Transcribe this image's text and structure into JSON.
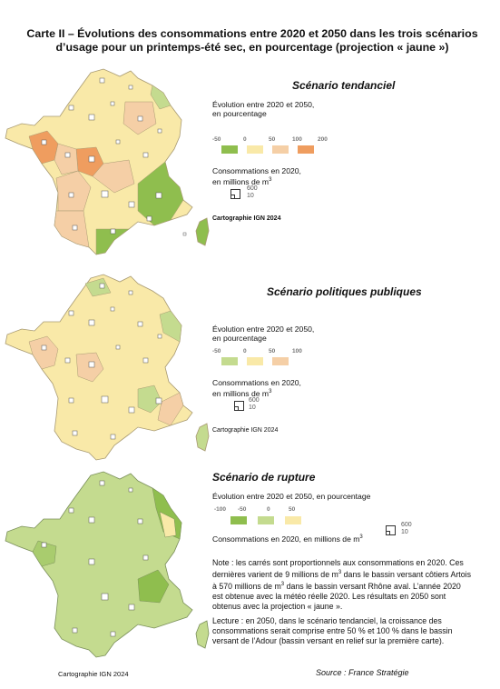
{
  "title_line1": "Carte II – Évolutions des consommations entre 2020 et 2050 dans les trois scénarios",
  "title_line2": "d’usage pour un printemps-été sec, en pourcentage (projection « jaune »)",
  "colors": {
    "g2": "#8fbe4e",
    "g1": "#c4db8f",
    "y": "#f9e9a8",
    "o1": "#f5cfa6",
    "o2": "#ef9d5f",
    "border": "#a89a72"
  },
  "panels": [
    {
      "title": "Scénario tendanciel",
      "legend_evolution": [
        "Évolution entre 2020 et 2050,",
        "en pourcentage"
      ],
      "ticks": [
        "-50",
        "0",
        "50",
        "100",
        "200"
      ],
      "legend_conso_line1": "Consommations en 2020,",
      "legend_conso_line2": "en millions de m",
      "sizes": [
        "600",
        "10"
      ],
      "credit": "Cartographie IGN 2024"
    },
    {
      "title": "Scénario politiques publiques",
      "legend_evolution": [
        "Évolution entre 2020 et 2050,",
        "en pourcentage"
      ],
      "ticks": [
        "-50",
        "0",
        "50",
        "100"
      ],
      "legend_conso_line1": "Consommations en 2020,",
      "legend_conso_line2": "en millions de m",
      "sizes": [
        "600",
        "10"
      ],
      "credit": "Cartographie IGN 2024"
    },
    {
      "title": "Scénario de rupture",
      "legend_evolution": "Évolution entre 2020 et 2050, en pourcentage",
      "ticks": [
        "-100",
        "-50",
        "0",
        "50"
      ],
      "legend_conso": "Consommations en 2020, en millions de m",
      "sizes": [
        "600",
        "10"
      ]
    }
  ],
  "note": "Note : les carrés sont proportionnels aux consommations en 2020. Ces dernières varient de 9 millions de m",
  "note_b": " dans le bassin versant côtiers Artois à 570 millions de m",
  "note_c": " dans le bassin versant Rhône aval. L’année 2020 est obtenue avec la météo réelle 2020. Les résultats en 2050 sont obtenus avec la projection « jaune ».",
  "lecture": "Lecture : en 2050, dans le scénario tendanciel, la croissance des consommations serait comprise entre 50 % et 100 % dans le bassin versant de l’Adour (bassin versant en relief sur la première carte).",
  "bottom_credit": "Cartographie IGN 2024",
  "source": "Source : France Stratégie"
}
